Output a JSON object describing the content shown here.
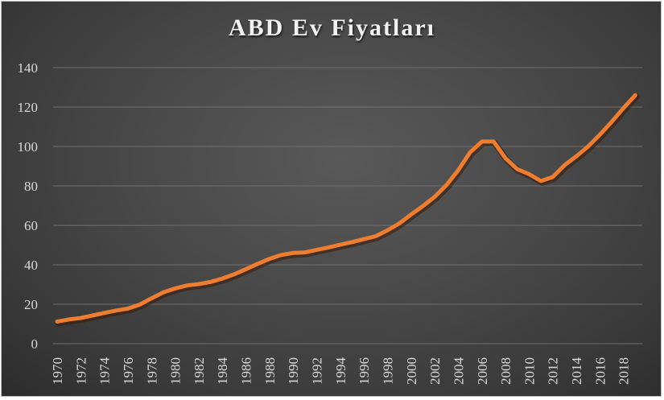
{
  "chart_data": {
    "type": "line",
    "title": "ABD Ev Fiyatları",
    "xlabel": "",
    "ylabel": "",
    "ylim": [
      0,
      140
    ],
    "yticks": [
      0,
      20,
      40,
      60,
      80,
      100,
      120,
      140
    ],
    "xtick_labels": [
      "1970",
      "1972",
      "1974",
      "1976",
      "1978",
      "1980",
      "1982",
      "1984",
      "1986",
      "1988",
      "1990",
      "1992",
      "1994",
      "1996",
      "1998",
      "2000",
      "2002",
      "2004",
      "2006",
      "2008",
      "2010",
      "2012",
      "2014",
      "2016",
      "2018"
    ],
    "grid": true,
    "legend": null,
    "line_color": "#ED7D31",
    "x": [
      1970,
      1971,
      1972,
      1973,
      1974,
      1975,
      1976,
      1977,
      1978,
      1979,
      1980,
      1981,
      1982,
      1983,
      1984,
      1985,
      1986,
      1987,
      1988,
      1989,
      1990,
      1991,
      1992,
      1993,
      1994,
      1995,
      1996,
      1997,
      1998,
      1999,
      2000,
      2001,
      2002,
      2003,
      2004,
      2005,
      2006,
      2007,
      2008,
      2009,
      2010,
      2011,
      2012,
      2013,
      2014,
      2015,
      2016,
      2017,
      2018,
      2019
    ],
    "series": [
      {
        "name": "ABD Ev Fiyatları",
        "values": [
          11.2,
          12.3,
          13.0,
          14.3,
          15.6,
          16.8,
          17.8,
          19.8,
          23.0,
          26.0,
          28.0,
          29.5,
          30.2,
          31.3,
          33.0,
          35.2,
          37.8,
          40.5,
          43.0,
          45.0,
          46.0,
          46.3,
          47.6,
          48.8,
          50.2,
          51.5,
          53.0,
          54.5,
          57.5,
          61.0,
          65.5,
          69.8,
          74.5,
          80.5,
          88.0,
          97.0,
          102.5,
          102.5,
          94.0,
          88.5,
          86.0,
          82.5,
          84.5,
          90.5,
          95.0,
          100.0,
          106.0,
          112.5,
          119.5,
          126.0
        ]
      }
    ]
  }
}
